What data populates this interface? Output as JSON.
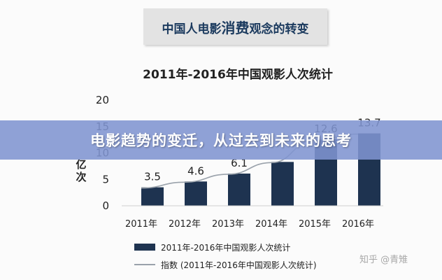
{
  "header": {
    "title_a": "中国人电影",
    "title_b": "消费",
    "title_c": "观念的转变"
  },
  "banner": {
    "text": "电影趋势的变迁，从过去到未来的思考"
  },
  "watermark": {
    "text": "知乎 @青雉"
  },
  "chart_data": {
    "type": "bar",
    "title": "2011年-2016年中国观影人次统计",
    "ylabel": "亿次",
    "xlabel": "",
    "categories": [
      "2011年",
      "2012年",
      "2013年",
      "2014年",
      "2015年",
      "2016年"
    ],
    "series": [
      {
        "name": "2011年-2016年中国观影人次统计",
        "values": [
          3.5,
          4.6,
          6.1,
          8.3,
          12.6,
          13.7
        ],
        "type": "bar"
      },
      {
        "name": "指数 (2011年-2016年中国观影人次统计)",
        "values": [
          3.5,
          4.6,
          6.1,
          8.3,
          12.6,
          13.7
        ],
        "type": "line"
      }
    ],
    "data_labels": [
      "3.5",
      "4.6",
      "6.1",
      "",
      "12.6",
      "13.7"
    ],
    "yticks": [
      "0",
      "5",
      "10",
      "15",
      "20"
    ],
    "ylim": [
      0,
      20
    ],
    "grid": false,
    "legend_position": "bottom",
    "colors": {
      "bar": "#1e3350",
      "line": "#9aa2ab"
    }
  }
}
